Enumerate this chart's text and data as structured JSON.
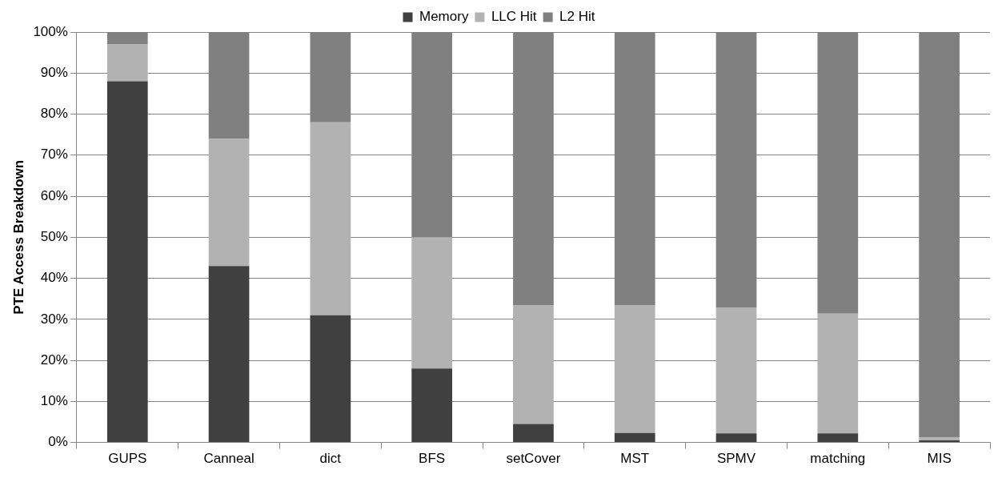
{
  "chart_data": {
    "type": "bar",
    "stacked": true,
    "ylabel": "PTE Access Breakdown",
    "categories": [
      "GUPS",
      "Canneal",
      "dict",
      "BFS",
      "setCover",
      "MST",
      "SPMV",
      "matching",
      "MIS"
    ],
    "series": [
      {
        "name": "Memory",
        "color": "#404040",
        "values": [
          88,
          43,
          31,
          18,
          4.5,
          2.3,
          2.2,
          2.2,
          0.5
        ]
      },
      {
        "name": "LLC Hit",
        "color": "#b2b2b2",
        "values": [
          9,
          31,
          47,
          32,
          29,
          31.2,
          30.6,
          29.2,
          0.7
        ]
      },
      {
        "name": "L2 Hit",
        "color": "#808080",
        "values": [
          3,
          26,
          22,
          50,
          66.5,
          66.5,
          67.2,
          68.6,
          98.8
        ]
      }
    ],
    "ylim": [
      0,
      100
    ],
    "yticks": [
      {
        "value": 0,
        "label": "0%"
      },
      {
        "value": 10,
        "label": "10%"
      },
      {
        "value": 20,
        "label": "20%"
      },
      {
        "value": 30,
        "label": "30%"
      },
      {
        "value": 40,
        "label": "40%"
      },
      {
        "value": 50,
        "label": "50%"
      },
      {
        "value": 60,
        "label": "60%"
      },
      {
        "value": 70,
        "label": "70%"
      },
      {
        "value": 80,
        "label": "80%"
      },
      {
        "value": 90,
        "label": "90%"
      },
      {
        "value": 100,
        "label": "100%"
      }
    ],
    "grid": "y",
    "legend": "top"
  }
}
